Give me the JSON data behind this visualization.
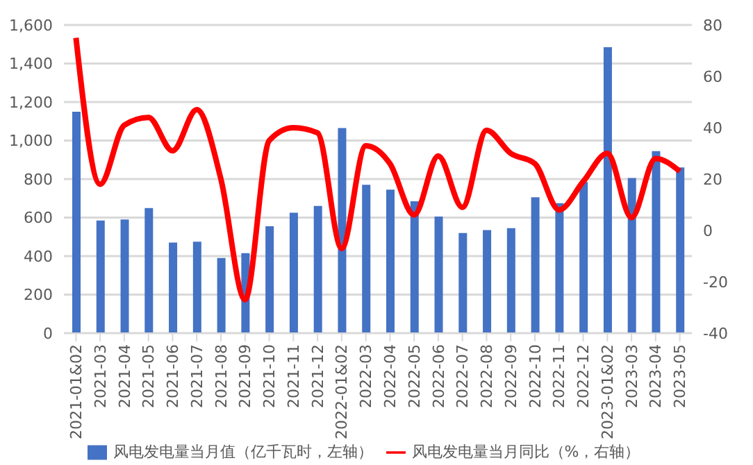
{
  "chart_data": {
    "type": "bar",
    "categories": [
      "2021-01&02",
      "2021-03",
      "2021-04",
      "2021-05",
      "2021-06",
      "2021-07",
      "2021-08",
      "2021-09",
      "2021-10",
      "2021-11",
      "2021-12",
      "2022-01&02",
      "2022-03",
      "2022-04",
      "2022-05",
      "2022-06",
      "2022-07",
      "2022-08",
      "2022-09",
      "2022-10",
      "2022-11",
      "2022-12",
      "2023-01&02",
      "2023-03",
      "2023-04",
      "2023-05"
    ],
    "series": [
      {
        "name": "风电发电量当月值（亿千瓦时，左轴）",
        "color": "#4472c4",
        "values": [
          1150,
          585,
          590,
          650,
          470,
          475,
          390,
          415,
          555,
          625,
          660,
          1065,
          770,
          745,
          685,
          605,
          520,
          535,
          545,
          705,
          675,
          785,
          1485,
          805,
          945,
          860
        ]
      },
      {
        "name": "风电发电量当月同比（%，右轴）",
        "type": "line",
        "axis": "y2",
        "color": "#ff0000",
        "values": [
          75,
          18,
          41,
          44,
          31,
          47,
          20,
          -27,
          35,
          40,
          38,
          -7,
          33,
          26,
          6,
          29,
          9,
          39,
          30,
          26,
          8,
          19,
          30,
          5,
          28,
          23
        ]
      }
    ],
    "ylim": [
      0,
      1600
    ],
    "yticks": [
      0,
      200,
      400,
      600,
      800,
      {
        "value": 1000,
        "label": "1,000"
      },
      {
        "value": 1200,
        "label": "1,200"
      },
      {
        "value": 1400,
        "label": "1,400"
      },
      {
        "value": 1600,
        "label": "1,600"
      }
    ],
    "y2lim": [
      -40,
      80
    ],
    "y2ticks": [
      -40,
      -20,
      0,
      20,
      40,
      60,
      80
    ],
    "grid": "y",
    "legend": "bottom",
    "marker": "none",
    "line_style": "solid"
  }
}
